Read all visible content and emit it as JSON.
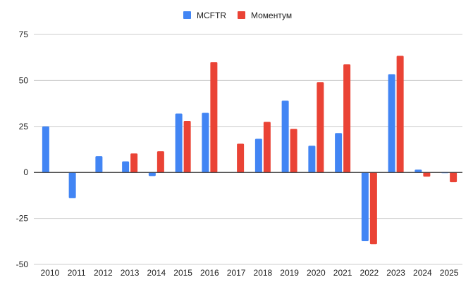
{
  "chart_data": {
    "type": "bar",
    "title": "",
    "xlabel": "",
    "ylabel": "",
    "ylim": [
      -50,
      75
    ],
    "yticks": [
      -50,
      -25,
      0,
      25,
      50,
      75
    ],
    "grid": true,
    "legend_position": "top-center",
    "categories": [
      "2010",
      "2011",
      "2012",
      "2013",
      "2014",
      "2015",
      "2016",
      "2017",
      "2018",
      "2019",
      "2020",
      "2021",
      "2022",
      "2023",
      "2024",
      "2025"
    ],
    "series": [
      {
        "name": "MCFTR",
        "color": "#4285f4",
        "values": [
          25.0,
          -14.0,
          8.8,
          6.0,
          -2.0,
          32.0,
          32.4,
          0,
          18.3,
          39.0,
          14.5,
          21.4,
          -37.4,
          53.4,
          1.5,
          -0.4
        ]
      },
      {
        "name": "Моментум",
        "color": "#ea4335",
        "values": [
          0,
          0,
          0,
          10.3,
          11.5,
          28.0,
          60.0,
          15.6,
          27.5,
          23.7,
          49.0,
          58.8,
          -39.0,
          63.4,
          -2.3,
          -5.3
        ]
      }
    ]
  }
}
